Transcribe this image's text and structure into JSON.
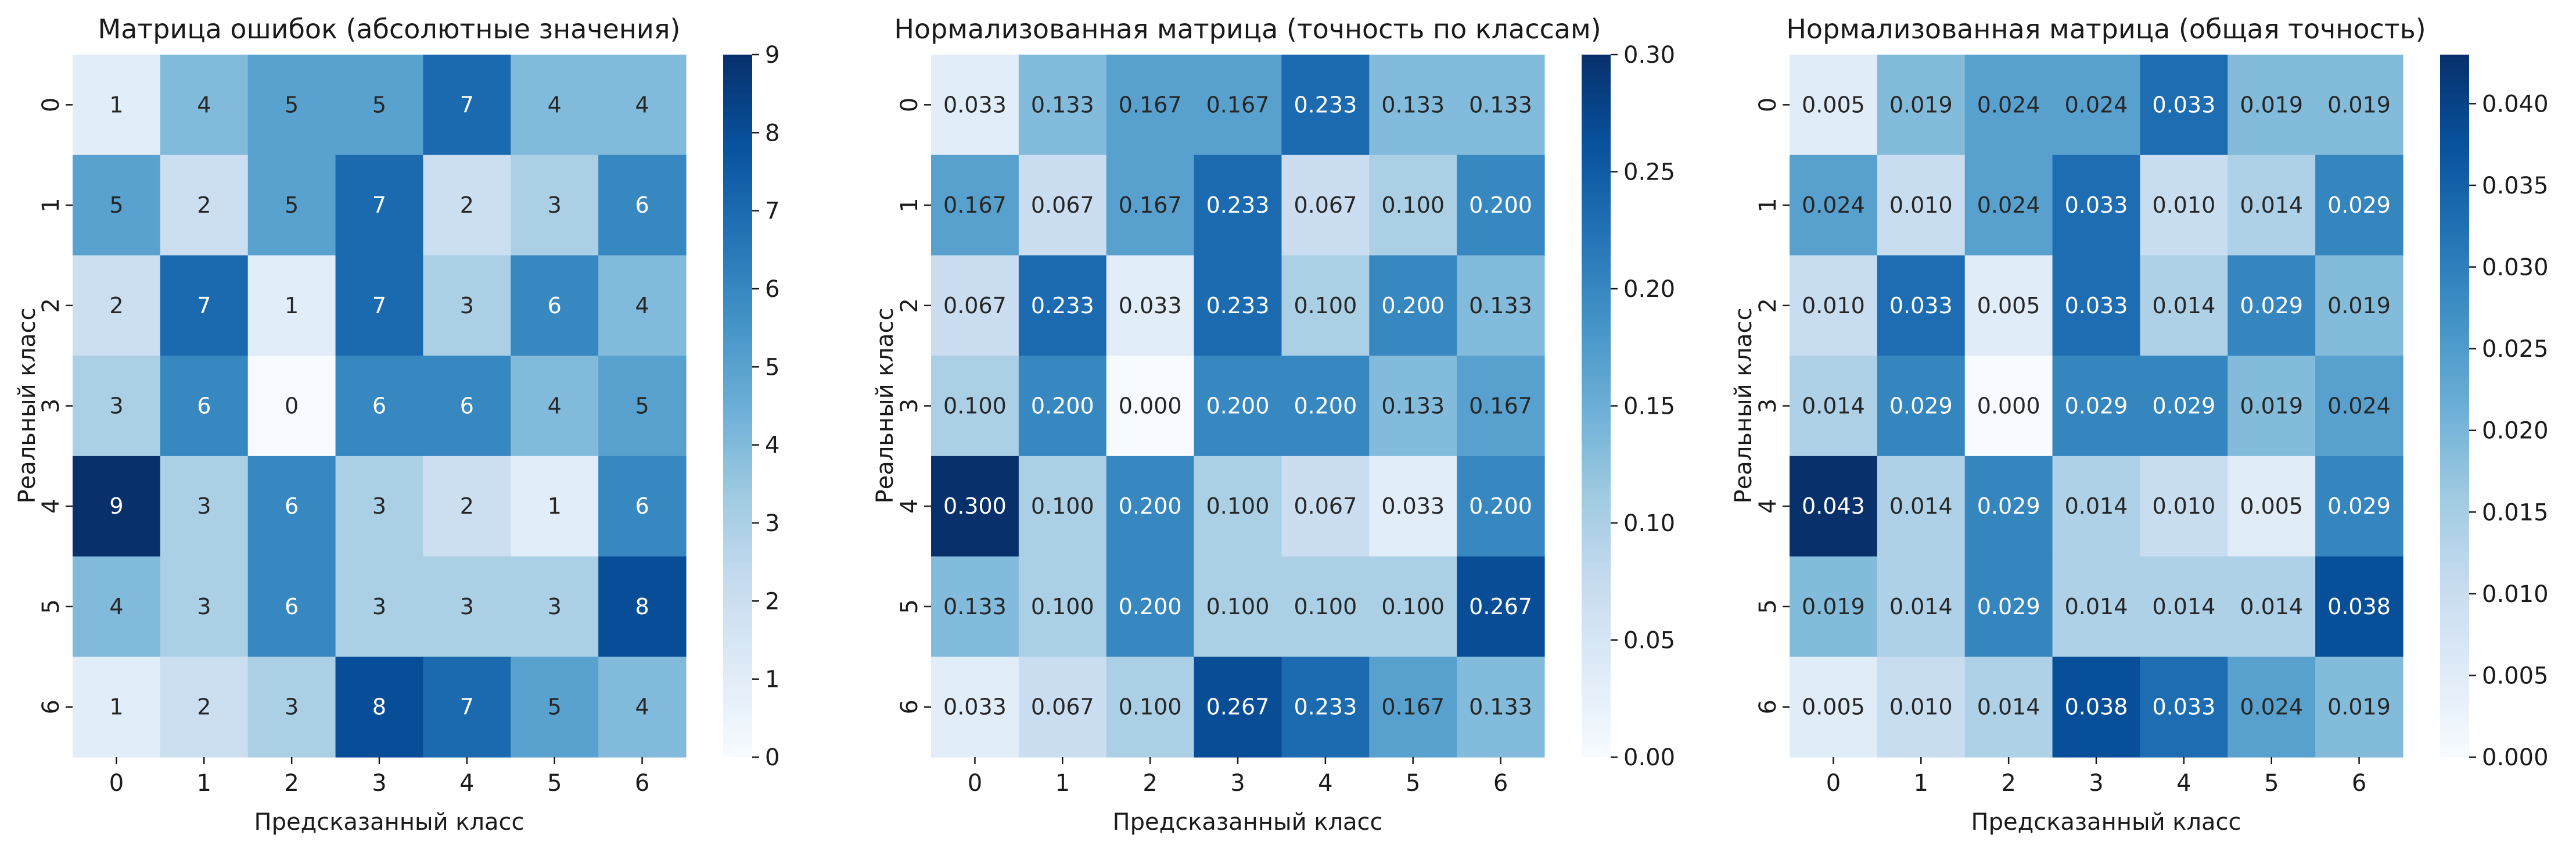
{
  "chart_data": [
    {
      "type": "heatmap",
      "title": "Матрица ошибок (абсолютные значения)",
      "xlabel": "Предсказанный класс",
      "ylabel": "Реальный класс",
      "x_categories": [
        "0",
        "1",
        "2",
        "3",
        "4",
        "5",
        "6"
      ],
      "y_categories": [
        "0",
        "1",
        "2",
        "3",
        "4",
        "5",
        "6"
      ],
      "values": [
        [
          1,
          4,
          5,
          5,
          7,
          4,
          4
        ],
        [
          5,
          2,
          5,
          7,
          2,
          3,
          6
        ],
        [
          2,
          7,
          1,
          7,
          3,
          6,
          4
        ],
        [
          3,
          6,
          0,
          6,
          6,
          4,
          5
        ],
        [
          9,
          3,
          6,
          3,
          2,
          1,
          6
        ],
        [
          4,
          3,
          6,
          3,
          3,
          3,
          8
        ],
        [
          1,
          2,
          3,
          8,
          7,
          5,
          4
        ]
      ],
      "value_labels": [
        [
          "1",
          "4",
          "5",
          "5",
          "7",
          "4",
          "4"
        ],
        [
          "5",
          "2",
          "5",
          "7",
          "2",
          "3",
          "6"
        ],
        [
          "2",
          "7",
          "1",
          "7",
          "3",
          "6",
          "4"
        ],
        [
          "3",
          "6",
          "0",
          "6",
          "6",
          "4",
          "5"
        ],
        [
          "9",
          "3",
          "6",
          "3",
          "2",
          "1",
          "6"
        ],
        [
          "4",
          "3",
          "6",
          "3",
          "3",
          "3",
          "8"
        ],
        [
          "1",
          "2",
          "3",
          "8",
          "7",
          "5",
          "4"
        ]
      ],
      "colorbar": {
        "range": [
          0,
          9
        ],
        "ticks": [
          0,
          1,
          2,
          3,
          4,
          5,
          6,
          7,
          8,
          9
        ],
        "tick_labels": [
          "0",
          "1",
          "2",
          "3",
          "4",
          "5",
          "6",
          "7",
          "8",
          "9"
        ]
      },
      "colormap": "Blues"
    },
    {
      "type": "heatmap",
      "title": "Нормализованная матрица (точность по классам)",
      "xlabel": "Предсказанный класс",
      "ylabel": "Реальный класс",
      "x_categories": [
        "0",
        "1",
        "2",
        "3",
        "4",
        "5",
        "6"
      ],
      "y_categories": [
        "0",
        "1",
        "2",
        "3",
        "4",
        "5",
        "6"
      ],
      "values": [
        [
          0.033,
          0.133,
          0.167,
          0.167,
          0.233,
          0.133,
          0.133
        ],
        [
          0.167,
          0.067,
          0.167,
          0.233,
          0.067,
          0.1,
          0.2
        ],
        [
          0.067,
          0.233,
          0.033,
          0.233,
          0.1,
          0.2,
          0.133
        ],
        [
          0.1,
          0.2,
          0.0,
          0.2,
          0.2,
          0.133,
          0.167
        ],
        [
          0.3,
          0.1,
          0.2,
          0.1,
          0.067,
          0.033,
          0.2
        ],
        [
          0.133,
          0.1,
          0.2,
          0.1,
          0.1,
          0.1,
          0.267
        ],
        [
          0.033,
          0.067,
          0.1,
          0.267,
          0.233,
          0.167,
          0.133
        ]
      ],
      "value_labels": [
        [
          "0.033",
          "0.133",
          "0.167",
          "0.167",
          "0.233",
          "0.133",
          "0.133"
        ],
        [
          "0.167",
          "0.067",
          "0.167",
          "0.233",
          "0.067",
          "0.100",
          "0.200"
        ],
        [
          "0.067",
          "0.233",
          "0.033",
          "0.233",
          "0.100",
          "0.200",
          "0.133"
        ],
        [
          "0.100",
          "0.200",
          "0.000",
          "0.200",
          "0.200",
          "0.133",
          "0.167"
        ],
        [
          "0.300",
          "0.100",
          "0.200",
          "0.100",
          "0.067",
          "0.033",
          "0.200"
        ],
        [
          "0.133",
          "0.100",
          "0.200",
          "0.100",
          "0.100",
          "0.100",
          "0.267"
        ],
        [
          "0.033",
          "0.067",
          "0.100",
          "0.267",
          "0.233",
          "0.167",
          "0.133"
        ]
      ],
      "colorbar": {
        "range": [
          0,
          0.3
        ],
        "ticks": [
          0,
          0.05,
          0.1,
          0.15,
          0.2,
          0.25,
          0.3
        ],
        "tick_labels": [
          "0.00",
          "0.05",
          "0.10",
          "0.15",
          "0.20",
          "0.25",
          "0.30"
        ]
      },
      "colormap": "Blues"
    },
    {
      "type": "heatmap",
      "title": "Нормализованная матрица (общая точность)",
      "xlabel": "Предсказанный класс",
      "ylabel": "Реальный класс",
      "x_categories": [
        "0",
        "1",
        "2",
        "3",
        "4",
        "5",
        "6"
      ],
      "y_categories": [
        "0",
        "1",
        "2",
        "3",
        "4",
        "5",
        "6"
      ],
      "values": [
        [
          0.005,
          0.019,
          0.024,
          0.024,
          0.033,
          0.019,
          0.019
        ],
        [
          0.024,
          0.01,
          0.024,
          0.033,
          0.01,
          0.014,
          0.029
        ],
        [
          0.01,
          0.033,
          0.005,
          0.033,
          0.014,
          0.029,
          0.019
        ],
        [
          0.014,
          0.029,
          0.0,
          0.029,
          0.029,
          0.019,
          0.024
        ],
        [
          0.043,
          0.014,
          0.029,
          0.014,
          0.01,
          0.005,
          0.029
        ],
        [
          0.019,
          0.014,
          0.029,
          0.014,
          0.014,
          0.014,
          0.038
        ],
        [
          0.005,
          0.01,
          0.014,
          0.038,
          0.033,
          0.024,
          0.019
        ]
      ],
      "value_labels": [
        [
          "0.005",
          "0.019",
          "0.024",
          "0.024",
          "0.033",
          "0.019",
          "0.019"
        ],
        [
          "0.024",
          "0.010",
          "0.024",
          "0.033",
          "0.010",
          "0.014",
          "0.029"
        ],
        [
          "0.010",
          "0.033",
          "0.005",
          "0.033",
          "0.014",
          "0.029",
          "0.019"
        ],
        [
          "0.014",
          "0.029",
          "0.000",
          "0.029",
          "0.029",
          "0.019",
          "0.024"
        ],
        [
          "0.043",
          "0.014",
          "0.029",
          "0.014",
          "0.010",
          "0.005",
          "0.029"
        ],
        [
          "0.019",
          "0.014",
          "0.029",
          "0.014",
          "0.014",
          "0.014",
          "0.038"
        ],
        [
          "0.005",
          "0.010",
          "0.014",
          "0.038",
          "0.033",
          "0.024",
          "0.019"
        ]
      ],
      "colorbar": {
        "range": [
          0,
          0.043
        ],
        "ticks": [
          0,
          0.005,
          0.01,
          0.015,
          0.02,
          0.025,
          0.03,
          0.035,
          0.04
        ],
        "tick_labels": [
          "0.000",
          "0.005",
          "0.010",
          "0.015",
          "0.020",
          "0.025",
          "0.030",
          "0.035",
          "0.040"
        ]
      },
      "colormap": "Blues"
    }
  ]
}
